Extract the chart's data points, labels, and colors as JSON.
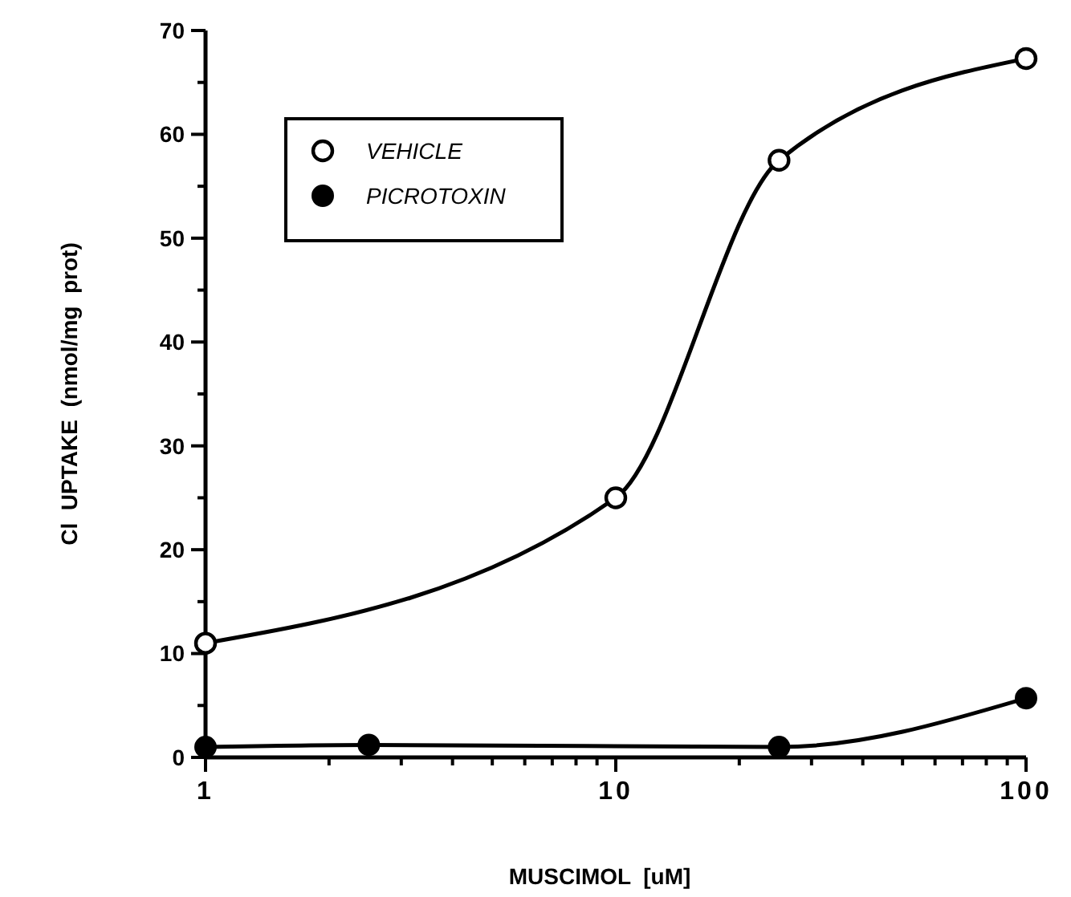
{
  "chart_data": {
    "type": "line",
    "xlabel": "MUSCIMOL  [uM]",
    "ylabel": "Cl  UPTAKE  (nmol/mg  prot)",
    "log": "x",
    "xlim": [
      1,
      100
    ],
    "ylim": [
      0,
      70
    ],
    "xticks": [
      1,
      {
        "value": 2,
        "label": null
      },
      {
        "value": 3,
        "label": null
      },
      {
        "value": 4,
        "label": null
      },
      {
        "value": 5,
        "label": null
      },
      {
        "value": 6,
        "label": null
      },
      {
        "value": 7,
        "label": null
      },
      {
        "value": 8,
        "label": null
      },
      {
        "value": 9,
        "label": null
      },
      10,
      {
        "value": 20,
        "label": null
      },
      {
        "value": 30,
        "label": null
      },
      {
        "value": 40,
        "label": null
      },
      {
        "value": 50,
        "label": null
      },
      {
        "value": 60,
        "label": null
      },
      {
        "value": 70,
        "label": null
      },
      {
        "value": 80,
        "label": null
      },
      {
        "value": 90,
        "label": null
      },
      100
    ],
    "yticks": [
      0,
      {
        "value": 5,
        "label": null
      },
      10,
      {
        "value": 15,
        "label": null
      },
      20,
      {
        "value": 25,
        "label": null
      },
      30,
      {
        "value": 35,
        "label": null
      },
      40,
      {
        "value": 45,
        "label": null
      },
      50,
      {
        "value": 55,
        "label": null
      },
      60,
      {
        "value": 65,
        "label": null
      },
      70
    ],
    "grid": false,
    "legend": "top left",
    "marker": "circle",
    "line_style": "solid",
    "series": [
      {
        "name": "VEHICLE",
        "color": "#000000",
        "marker": "circle_open",
        "x": [
          1,
          10,
          25,
          100
        ],
        "values": [
          11,
          25,
          57.5,
          67.3
        ]
      },
      {
        "name": "PICROTOXIN",
        "color": "#000000",
        "x": [
          1,
          2.5,
          25,
          100
        ],
        "values": [
          1,
          1.2,
          1,
          5.7
        ]
      }
    ]
  }
}
